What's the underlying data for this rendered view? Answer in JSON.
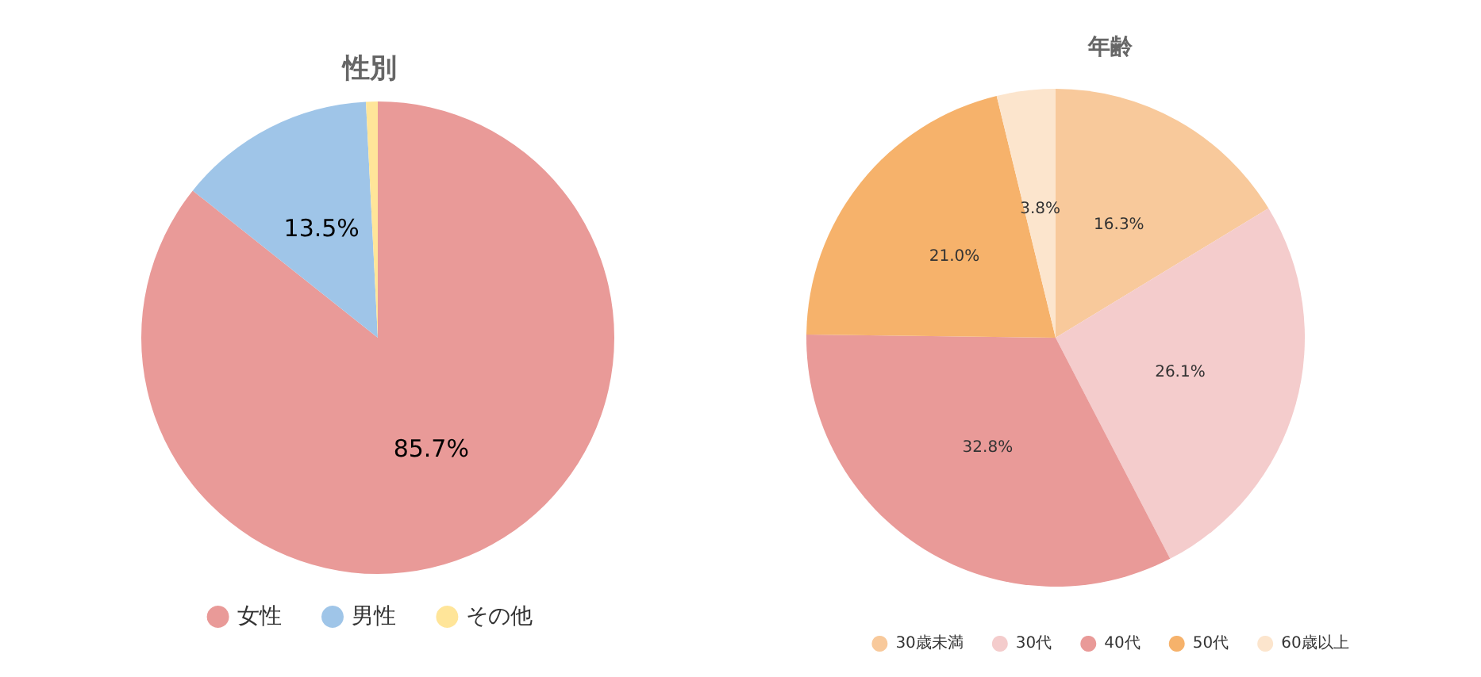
{
  "chart_data": [
    {
      "type": "pie",
      "title": "性別",
      "categories": [
        "女性",
        "男性",
        "その他"
      ],
      "values": [
        85.7,
        13.5,
        0.8
      ],
      "colors": [
        "#e99a98",
        "#9fc5e8",
        "#ffe599"
      ],
      "value_labels": [
        "85.7%",
        "13.5%",
        null
      ],
      "legend": "bottom"
    },
    {
      "type": "pie",
      "title": "年齢",
      "categories": [
        "30歳未満",
        "30代",
        "40代",
        "50代",
        "60歳以上"
      ],
      "values": [
        16.3,
        26.1,
        32.8,
        21.0,
        3.8
      ],
      "colors": [
        "#f8c99b",
        "#f4cccc",
        "#e99a98",
        "#f6b26b",
        "#fce5cd"
      ],
      "value_labels": [
        "16.3%",
        "26.1%",
        "32.8%",
        "21.0%",
        "3.8%"
      ],
      "legend": "bottom"
    }
  ]
}
